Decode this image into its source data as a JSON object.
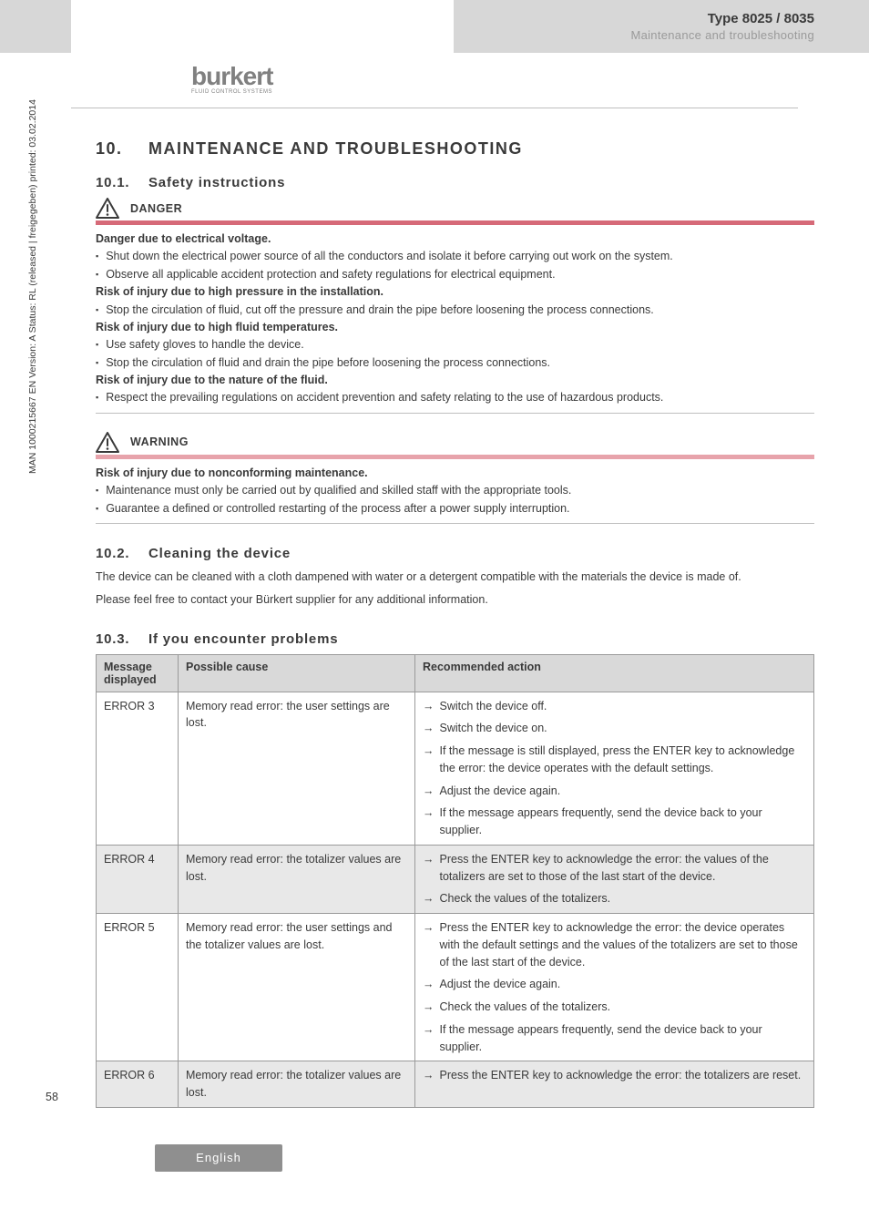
{
  "header": {
    "type_line": "Type 8025 / 8035",
    "subtitle": "Maintenance and troubleshooting",
    "logo_word": "burkert",
    "logo_sub": "FLUID CONTROL SYSTEMS"
  },
  "section": {
    "num": "10.",
    "title": "MAINTENANCE AND TROUBLESHOOTING"
  },
  "sub1": {
    "num": "10.1.",
    "title": "Safety instructions"
  },
  "danger": {
    "label": "DANGER",
    "h1": "Danger due to electrical voltage.",
    "b1a": "Shut down the electrical power source of all the conductors and isolate it before carrying out work on the system.",
    "b1b": "Observe all applicable accident protection and safety regulations for electrical equipment.",
    "h2": "Risk of injury due to high pressure in the installation.",
    "b2a": "Stop the circulation of fluid, cut off the pressure and drain the pipe before loosening the process connections.",
    "h3": "Risk of injury due to high fluid temperatures.",
    "b3a": "Use safety gloves to handle the device.",
    "b3b": "Stop the circulation of fluid and drain the pipe before loosening the process connections.",
    "h4": "Risk of injury due to the nature of the fluid.",
    "b4a": "Respect the prevailing regulations on accident prevention and safety relating to the use of hazardous products."
  },
  "warning": {
    "label": "WARNING",
    "h1": "Risk of injury due to nonconforming maintenance.",
    "b1": "Maintenance must only be carried out by qualified and skilled staff with the appropriate tools.",
    "b2": "Guarantee a defined or controlled restarting of the process after a power supply interruption."
  },
  "sub2": {
    "num": "10.2.",
    "title": "Cleaning the device"
  },
  "cleaning": {
    "p1": "The device can be cleaned with a cloth dampened with water or a detergent compatible with the materials the device is made of.",
    "p2": "Please feel free to contact your Bürkert supplier for any additional information."
  },
  "sub3": {
    "num": "10.3.",
    "title": "If you encounter problems"
  },
  "table": {
    "headers": {
      "c1": "Message displayed",
      "c2": "Possible cause",
      "c3": "Recommended action"
    },
    "rows": [
      {
        "msg": "ERROR 3",
        "cause": "Memory read error: the user settings are lost.",
        "actions": [
          "Switch the device off.",
          "Switch the device on.",
          "If the message is still displayed, press the ENTER key to acknowledge the error: the device operates with the default settings.",
          "Adjust the device again.",
          "If the message appears frequently, send the device back to your supplier."
        ],
        "even": false
      },
      {
        "msg": "ERROR 4",
        "cause": "Memory read error: the totalizer values are lost.",
        "actions": [
          "Press the ENTER key to acknowledge the error: the values of the totalizers are set to those of the last start of the device.",
          "Check the values of the totalizers."
        ],
        "even": true
      },
      {
        "msg": "ERROR 5",
        "cause": "Memory read error: the user settings and the totalizer values are lost.",
        "actions": [
          "Press the ENTER key to acknowledge the error: the device operates with the default settings and the values of the totalizers are set to those of the last start of the device.",
          "Adjust the device again.",
          "Check the values of the totalizers.",
          "If the message appears frequently, send the device back to your supplier."
        ],
        "even": false
      },
      {
        "msg": "ERROR 6",
        "cause": "Memory read error: the totalizer values are lost.",
        "actions": [
          "Press the ENTER key to acknowledge the error: the totalizers are reset."
        ],
        "even": true
      }
    ]
  },
  "side": "MAN 1000215667 EN Version: A Status: RL (released | freigegeben) printed: 03.02.2014",
  "pagenum": "58",
  "footer": "English",
  "colors": {
    "grey_band": "#d7d7d7",
    "logo_grey": "#808080",
    "text": "#3a3a3a",
    "subtitle_grey": "#9a9a9a",
    "danger_bar": "#d66a78",
    "warning_bar": "#e7a3ab",
    "table_header_bg": "#d9d9d9",
    "table_border": "#9a9a9a",
    "table_even_bg": "#e8e8e8",
    "footer_tab_bg": "#8f8f8f"
  }
}
